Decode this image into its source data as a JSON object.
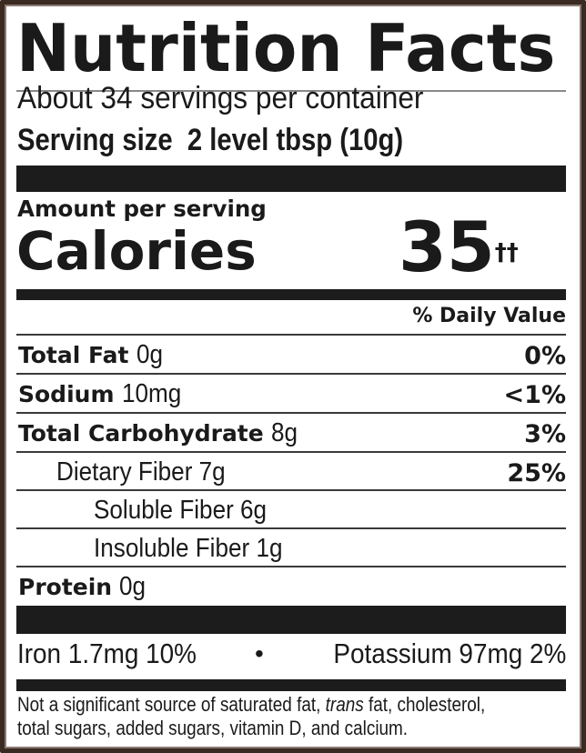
{
  "title": "Nutrition Facts",
  "servings_per_container": "About 34 servings per container",
  "serving_size": {
    "label": "Serving size",
    "value": "2 level tbsp (10g)"
  },
  "amount_per_serving": "Amount per serving",
  "calories": {
    "label": "Calories",
    "value": "35",
    "footnote_mark": "††"
  },
  "daily_value_header": "% Daily Value",
  "nutrients": [
    {
      "name": "Total Fat",
      "amount": "0g",
      "dv": "0%"
    },
    {
      "name": "Sodium",
      "amount": "10mg",
      "dv": "<1%"
    },
    {
      "name": "Total Carbohydrate",
      "amount": "8g",
      "dv": "3%"
    },
    {
      "name": "Dietary Fiber 7g",
      "amount": "",
      "dv": "25%"
    },
    {
      "name": "Soluble Fiber 6g",
      "amount": "",
      "dv": ""
    },
    {
      "name": "Insoluble Fiber 1g",
      "amount": "",
      "dv": ""
    },
    {
      "name": "Protein",
      "amount": "0g",
      "dv": ""
    }
  ],
  "minerals": {
    "iron": "Iron 1.7mg 10%",
    "separator": "•",
    "potassium": "Potassium 97mg 2%"
  },
  "footer": {
    "part1": "Not a significant source of saturated fat, ",
    "italic": "trans",
    "part2": " fat, cholesterol,",
    "line2": "total sugars, added sugars, vitamin D, and calcium."
  },
  "colors": {
    "border": "#3a2a22",
    "ink": "#1a1a1a"
  }
}
